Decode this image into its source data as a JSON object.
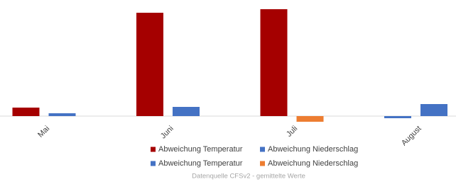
{
  "chart_data": {
    "type": "bar",
    "categories": [
      "Mai",
      "Juni",
      "Juli",
      "August"
    ],
    "series": [
      {
        "name": "Abweichung Temperatur",
        "color": "#a50000",
        "negative_color": "#4472c4",
        "values": [
          12,
          146,
          151,
          -3
        ]
      },
      {
        "name": "Abweichung Niederschlag",
        "color": "#4472c4",
        "negative_color": "#ed7d31",
        "values": [
          4,
          13,
          -8,
          17
        ]
      }
    ],
    "ylim": [
      -11,
      164
    ],
    "caption": "Datenquelle CFSv2 - gemittelte Werte"
  }
}
